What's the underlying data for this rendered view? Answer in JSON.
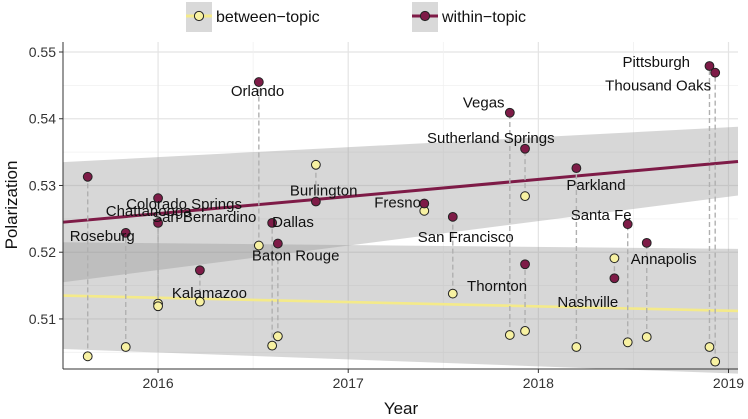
{
  "chart_data": {
    "type": "scatter",
    "xlabel": "Year",
    "ylabel": "Polarization",
    "xlim": [
      2015.5,
      2019.05
    ],
    "ylim": [
      0.5025,
      0.5515
    ],
    "x_ticks": [
      2016,
      2017,
      2018,
      2019
    ],
    "x_tick_labels": [
      "2016",
      "2017",
      "2018",
      "2019"
    ],
    "y_ticks": [
      0.51,
      0.52,
      0.53,
      0.54,
      0.55
    ],
    "y_tick_labels": [
      "0.51",
      "0.52",
      "0.53",
      "0.54",
      "0.55"
    ],
    "grid": true,
    "legend_position": "top",
    "series": [
      {
        "name": "between−topic",
        "point_color": "#f7f1a2",
        "line_color": "#f4ea8a",
        "trend": {
          "x": [
            2015.5,
            2019.05
          ],
          "y": [
            0.5135,
            0.5112
          ],
          "ci_low": [
            0.5055,
            0.5018
          ],
          "ci_high": [
            0.5215,
            0.5205
          ]
        }
      },
      {
        "name": "within−topic",
        "point_color": "#7e1b47",
        "line_color": "#7e1b47",
        "trend": {
          "x": [
            2015.5,
            2019.05
          ],
          "y": [
            0.5245,
            0.5336
          ],
          "ci_low": [
            0.5155,
            0.5285
          ],
          "ci_high": [
            0.5335,
            0.5388
          ]
        }
      }
    ],
    "events": [
      {
        "name": "Roseburg",
        "x": 2015.63,
        "between": 0.5044,
        "within": 0.5313
      },
      {
        "name": "Chattanooga",
        "x": 2015.83,
        "between": 0.5058,
        "within": 0.5229
      },
      {
        "name": "San Bernardino",
        "x": 2016.0,
        "between": 0.5123,
        "within": 0.5281
      },
      {
        "name": "Colorado Springs",
        "x": 2016.0,
        "between": 0.5119,
        "within": 0.5244
      },
      {
        "name": "Kalamazoo",
        "x": 2016.22,
        "between": 0.5126,
        "within": 0.5173
      },
      {
        "name": "Orlando",
        "x": 2016.53,
        "between": 0.521,
        "within": 0.5455
      },
      {
        "name": "Dallas",
        "x": 2016.6,
        "between": 0.506,
        "within": 0.5244
      },
      {
        "name": "Baton Rouge",
        "x": 2016.63,
        "between": 0.5074,
        "within": 0.5213
      },
      {
        "name": "Burlington",
        "x": 2016.83,
        "between": 0.5331,
        "within": 0.5276
      },
      {
        "name": "Fresno",
        "x": 2017.4,
        "between": 0.5262,
        "within": 0.5273
      },
      {
        "name": "San Francisco",
        "x": 2017.55,
        "between": 0.5138,
        "within": 0.5253
      },
      {
        "name": "Vegas",
        "x": 2017.85,
        "between": 0.5076,
        "within": 0.5409
      },
      {
        "name": "Sutherland Springs",
        "x": 2017.93,
        "between": 0.5284,
        "within": 0.5355
      },
      {
        "name": "Thornton",
        "x": 2017.93,
        "between": 0.5082,
        "within": 0.5182
      },
      {
        "name": "Parkland",
        "x": 2018.2,
        "between": 0.5058,
        "within": 0.5326
      },
      {
        "name": "Nashville",
        "x": 2018.4,
        "between": 0.5191,
        "within": 0.5161
      },
      {
        "name": "Santa Fe",
        "x": 2018.47,
        "between": 0.5065,
        "within": 0.5242
      },
      {
        "name": "Annapolis",
        "x": 2018.57,
        "between": 0.5073,
        "within": 0.5214
      },
      {
        "name": "Pittsburgh",
        "x": 2018.9,
        "between": 0.5058,
        "within": 0.5479
      },
      {
        "name": "Thousand Oaks",
        "x": 2018.93,
        "between": 0.5036,
        "within": 0.5469
      }
    ]
  }
}
